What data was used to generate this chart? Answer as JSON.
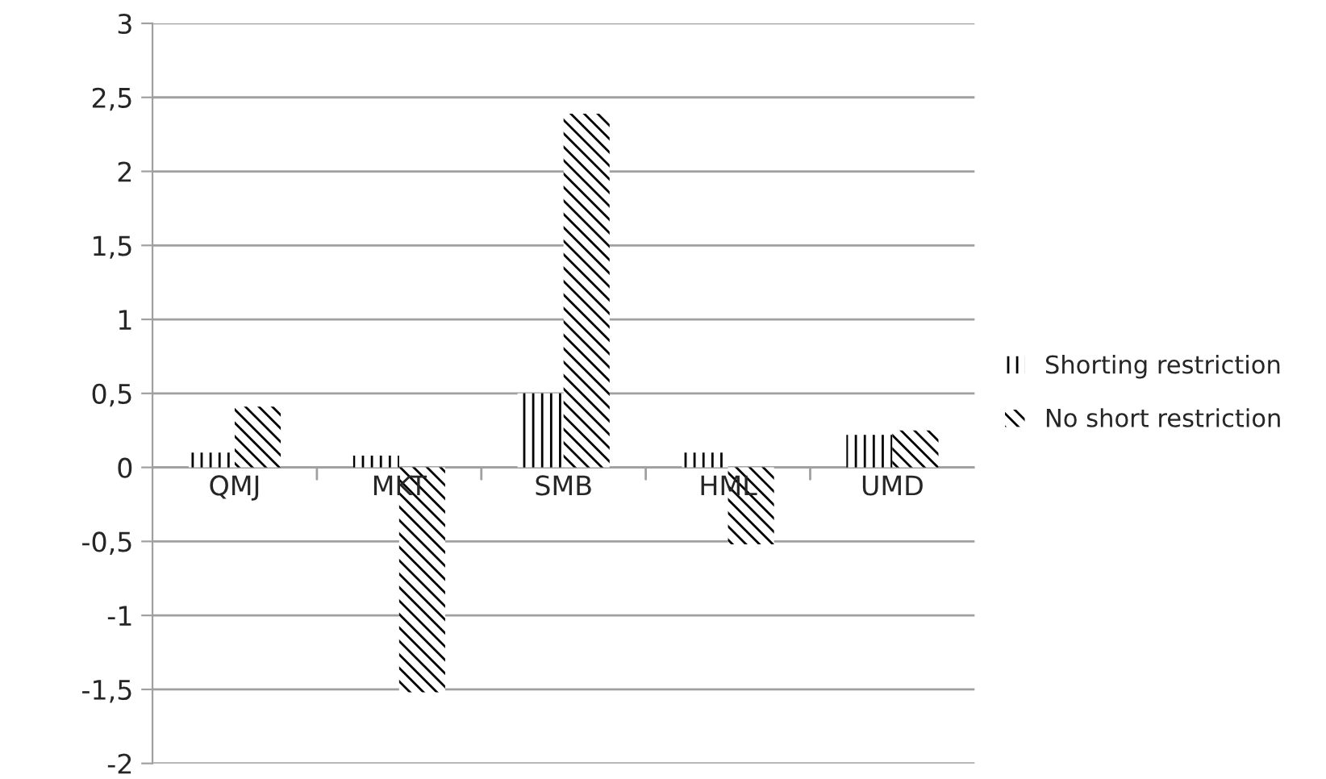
{
  "chart_data": {
    "type": "bar",
    "categories": [
      "QMJ",
      "MKT",
      "SMB",
      "HML",
      "UMD"
    ],
    "series": [
      {
        "name": "Shorting restriction",
        "color": "#000000",
        "values": [
          0.1,
          0.08,
          0.5,
          0.1,
          0.22
        ]
      },
      {
        "name": "No short restriction",
        "color": "#000000",
        "values": [
          0.41,
          -1.52,
          2.39,
          -0.52,
          0.25
        ]
      }
    ],
    "ylim": [
      -2,
      3
    ],
    "yticks": [
      {
        "value": -2,
        "label": "-2"
      },
      {
        "value": -1.5,
        "label": "-1,5"
      },
      {
        "value": -1,
        "label": "-1"
      },
      {
        "value": -0.5,
        "label": "-0,5"
      },
      0,
      {
        "value": 0.5,
        "label": "0,5"
      },
      1,
      {
        "value": 1.5,
        "label": "1,5"
      },
      2,
      {
        "value": 2.5,
        "label": "2,5"
      },
      3
    ],
    "grid": "y",
    "legend": "right"
  }
}
